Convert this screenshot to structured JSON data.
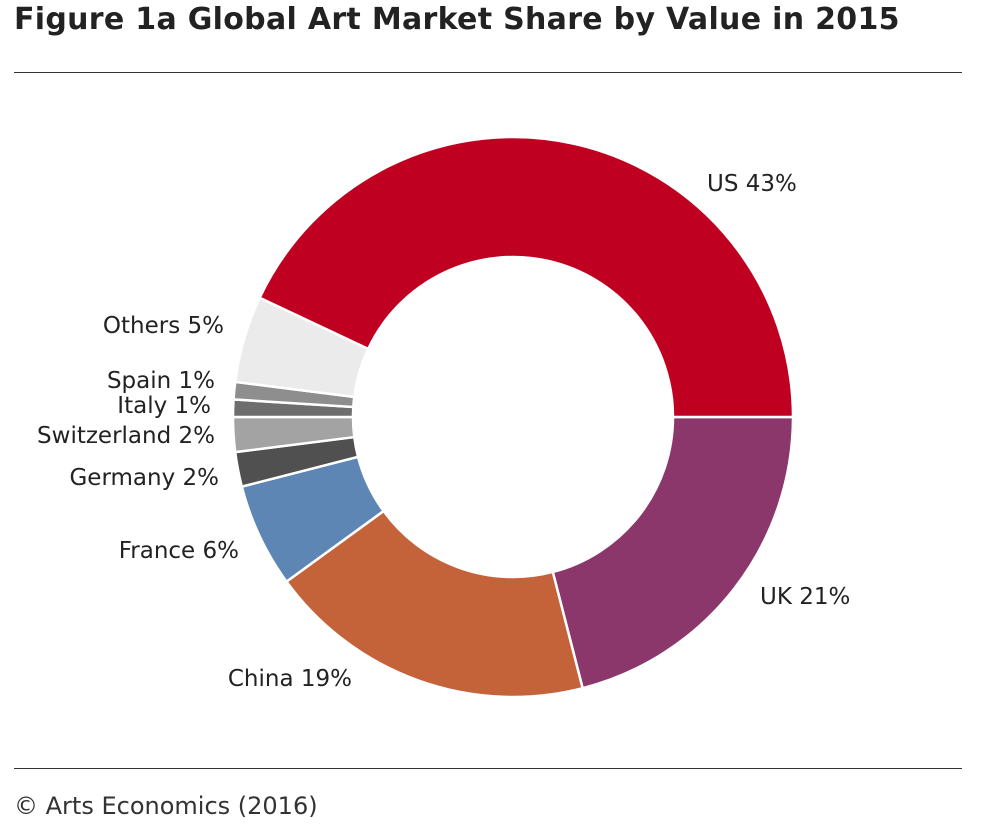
{
  "title": "Figure 1a  Global Art Market Share by Value in 2015",
  "footer": "© Arts Economics (2016)",
  "chart_data": {
    "type": "pie",
    "variant": "donut",
    "title": "Figure 1a  Global Art Market Share by Value in 2015",
    "unit": "%",
    "slices": [
      {
        "name": "UK",
        "value": 21,
        "label": "UK 21%",
        "color": "#8B376C"
      },
      {
        "name": "China",
        "value": 19,
        "label": "China 19%",
        "color": "#C4633A"
      },
      {
        "name": "France",
        "value": 6,
        "label": "France 6%",
        "color": "#5E86B5"
      },
      {
        "name": "Germany",
        "value": 2,
        "label": "Germany 2%",
        "color": "#505050"
      },
      {
        "name": "Switzerland",
        "value": 2,
        "label": "Switzerland 2%",
        "color": "#A3A3A3"
      },
      {
        "name": "Italy",
        "value": 1,
        "label": "Italy 1%",
        "color": "#6E6E6E"
      },
      {
        "name": "Spain",
        "value": 1,
        "label": "Spain 1%",
        "color": "#8E8E8E"
      },
      {
        "name": "Others",
        "value": 5,
        "label": "Others 5%",
        "color": "#EBEBEB"
      },
      {
        "name": "US",
        "value": 43,
        "label": "US 43%",
        "color": "#C00020"
      }
    ],
    "start": "3 o'clock",
    "direction": "clockwise",
    "legend": "none (direct labels)"
  }
}
